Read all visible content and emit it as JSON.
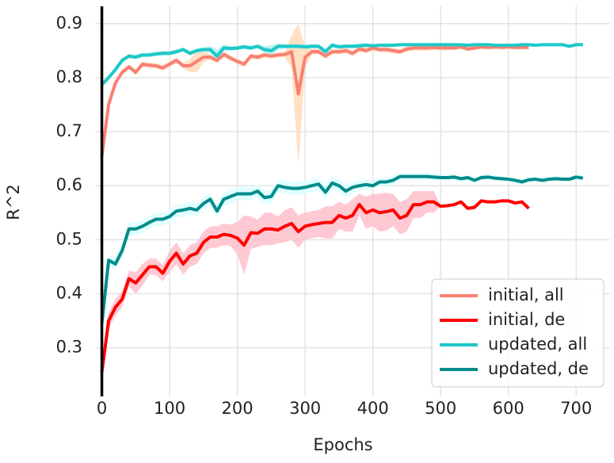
{
  "chart_data": {
    "type": "line",
    "xlabel": "Epochs",
    "ylabel": "R^2",
    "xlim": [
      -10,
      750
    ],
    "ylim": [
      0.21,
      0.932
    ],
    "xticks": [
      0,
      100,
      200,
      300,
      400,
      500,
      600,
      700
    ],
    "yticks": [
      0.3,
      0.4,
      0.5,
      0.6,
      0.7,
      0.8,
      0.9
    ],
    "grid": true,
    "legend": "lower right",
    "x": [
      0,
      10,
      20,
      30,
      40,
      50,
      60,
      70,
      80,
      90,
      100,
      110,
      120,
      130,
      140,
      150,
      160,
      170,
      180,
      190,
      200,
      210,
      220,
      230,
      240,
      250,
      260,
      270,
      280,
      290,
      300,
      310,
      320,
      330,
      340,
      350,
      360,
      370,
      380,
      390,
      400,
      410,
      420,
      430,
      440,
      450,
      460,
      470,
      480,
      490,
      500,
      510,
      520,
      530,
      540,
      550,
      560,
      570,
      580,
      590,
      600,
      610,
      620,
      630,
      640,
      650,
      660,
      670,
      680,
      690,
      700,
      710
    ],
    "series": [
      {
        "name": "initial, all",
        "color": "#fa8072",
        "band_color": "#ffdab9",
        "values": [
          0.655,
          0.75,
          0.79,
          0.81,
          0.82,
          0.81,
          0.825,
          0.823,
          0.822,
          0.818,
          0.825,
          0.832,
          0.822,
          0.822,
          0.83,
          0.838,
          0.838,
          0.832,
          0.843,
          0.836,
          0.83,
          0.825,
          0.84,
          0.838,
          0.842,
          0.84,
          0.842,
          0.843,
          0.848,
          0.77,
          0.838,
          0.848,
          0.848,
          0.84,
          0.848,
          0.848,
          0.85,
          0.845,
          0.853,
          0.85,
          0.855,
          0.852,
          0.852,
          0.85,
          0.848,
          0.853,
          0.855,
          0.855,
          0.855,
          0.856,
          0.855,
          0.855,
          0.855,
          0.857,
          0.853,
          0.855,
          0.857,
          0.856,
          0.857,
          0.856,
          0.857,
          0.856,
          0.856,
          0.856,
          null,
          null,
          null,
          null,
          null,
          null,
          null,
          null
        ],
        "errors": [
          0.005,
          0.005,
          0.005,
          0.005,
          0.005,
          0.005,
          0.005,
          0.005,
          0.005,
          0.005,
          0.005,
          0.005,
          0.005,
          0.012,
          0.02,
          0.01,
          0.005,
          0.005,
          0.005,
          0.005,
          0.005,
          0.005,
          0.005,
          0.005,
          0.005,
          0.005,
          0.005,
          0.005,
          0.03,
          0.13,
          0.02,
          0.005,
          0.005,
          0.005,
          0.005,
          0.005,
          0.005,
          0.005,
          0.005,
          0.005,
          0.005,
          0.005,
          0.005,
          0.005,
          0.005,
          0.005,
          0.005,
          0.005,
          0.005,
          0.005,
          0.004,
          0.004,
          0.004,
          0.004,
          0.004,
          0.004,
          0.004,
          0.004,
          0.004,
          0.004,
          0.004,
          0.004,
          0.004,
          0.004,
          null,
          null,
          null,
          null,
          null,
          null,
          null,
          null
        ]
      },
      {
        "name": "initial, de",
        "color": "#ff0000",
        "band_color": "#ffc0cb",
        "values": [
          0.255,
          0.35,
          0.375,
          0.39,
          0.428,
          0.42,
          0.435,
          0.45,
          0.45,
          0.438,
          0.46,
          0.475,
          0.455,
          0.47,
          0.475,
          0.495,
          0.505,
          0.505,
          0.51,
          0.508,
          0.503,
          0.49,
          0.513,
          0.512,
          0.52,
          0.52,
          0.518,
          0.525,
          0.53,
          0.515,
          0.525,
          0.528,
          0.53,
          0.532,
          0.532,
          0.545,
          0.54,
          0.545,
          0.565,
          0.55,
          0.555,
          0.55,
          0.552,
          0.555,
          0.54,
          0.545,
          0.565,
          0.565,
          0.57,
          0.57,
          0.562,
          0.563,
          0.565,
          0.57,
          0.558,
          0.56,
          0.572,
          0.57,
          0.57,
          0.572,
          0.572,
          0.568,
          0.57,
          0.558,
          null,
          null,
          null,
          null,
          null,
          null,
          null,
          null
        ],
        "errors": [
          0.01,
          0.015,
          0.015,
          0.015,
          0.015,
          0.02,
          0.02,
          0.015,
          0.015,
          0.015,
          0.02,
          0.02,
          0.02,
          0.02,
          0.02,
          0.02,
          0.02,
          0.02,
          0.02,
          0.02,
          0.03,
          0.055,
          0.03,
          0.025,
          0.03,
          0.03,
          0.025,
          0.03,
          0.03,
          0.03,
          0.025,
          0.025,
          0.025,
          0.03,
          0.03,
          0.025,
          0.025,
          0.03,
          0.02,
          0.03,
          0.03,
          0.035,
          0.035,
          0.03,
          0.03,
          0.03,
          0.025,
          0.025,
          0.02,
          0.02,
          0,
          0,
          0,
          0,
          0,
          0,
          0,
          0,
          0,
          0,
          0,
          0,
          0,
          0,
          null,
          null,
          null,
          null,
          null,
          null,
          null,
          null
        ]
      },
      {
        "name": "updated, all",
        "color": "#1ec8c8",
        "band_color": "#b0f0f0",
        "values": [
          0.787,
          0.8,
          0.815,
          0.832,
          0.84,
          0.838,
          0.842,
          0.842,
          0.844,
          0.845,
          0.845,
          0.848,
          0.852,
          0.845,
          0.85,
          0.852,
          0.852,
          0.84,
          0.855,
          0.854,
          0.855,
          0.857,
          0.855,
          0.858,
          0.852,
          0.85,
          0.858,
          0.858,
          0.858,
          0.858,
          0.857,
          0.858,
          0.858,
          0.848,
          0.86,
          0.857,
          0.858,
          0.858,
          0.859,
          0.86,
          0.859,
          0.86,
          0.86,
          0.86,
          0.861,
          0.861,
          0.861,
          0.861,
          0.861,
          0.861,
          0.861,
          0.861,
          0.861,
          0.861,
          0.86,
          0.861,
          0.861,
          0.861,
          0.86,
          0.86,
          0.86,
          0.86,
          0.861,
          0.861,
          0.86,
          0.861,
          0.861,
          0.861,
          0.861,
          0.858,
          0.861,
          0.861
        ],
        "errors": [
          0.004,
          0.004,
          0.004,
          0.004,
          0.004,
          0.004,
          0.004,
          0.004,
          0.004,
          0.004,
          0.004,
          0.004,
          0.004,
          0.004,
          0.004,
          0.004,
          0.006,
          0.012,
          0.006,
          0.004,
          0.004,
          0.004,
          0.004,
          0.004,
          0.006,
          0.01,
          0.006,
          0.004,
          0.004,
          0.004,
          0.004,
          0.004,
          0.004,
          0.006,
          0.004,
          0.004,
          0.004,
          0.004,
          0.004,
          0.004,
          0.003,
          0.003,
          0.003,
          0.003,
          0.003,
          0.003,
          0.003,
          0.003,
          0.003,
          0.003,
          0.003,
          0.003,
          0.003,
          0.003,
          0.003,
          0.003,
          0.003,
          0.003,
          0.003,
          0.003,
          0.003,
          0.003,
          0.003,
          0.003,
          0.003,
          0.003,
          0.003,
          0.003,
          0.003,
          0.003,
          0.003,
          0.003
        ]
      },
      {
        "name": "updated, de",
        "color": "#008b8b",
        "band_color": "#dcffff",
        "values": [
          0.345,
          0.462,
          0.455,
          0.48,
          0.52,
          0.52,
          0.525,
          0.532,
          0.538,
          0.538,
          0.543,
          0.553,
          0.555,
          0.558,
          0.555,
          0.567,
          0.575,
          0.553,
          0.575,
          0.58,
          0.585,
          0.585,
          0.585,
          0.59,
          0.578,
          0.58,
          0.6,
          0.597,
          0.595,
          0.595,
          0.597,
          0.6,
          0.603,
          0.588,
          0.605,
          0.6,
          0.59,
          0.597,
          0.6,
          0.602,
          0.6,
          0.607,
          0.607,
          0.61,
          0.617,
          0.617,
          0.617,
          0.617,
          0.617,
          0.616,
          0.615,
          0.615,
          0.616,
          0.613,
          0.615,
          0.61,
          0.615,
          0.616,
          0.614,
          0.613,
          0.612,
          0.61,
          0.607,
          0.611,
          0.612,
          0.61,
          0.612,
          0.613,
          0.612,
          0.612,
          0.616,
          0.614
        ],
        "errors": [
          0.01,
          0.012,
          0.012,
          0.012,
          0.012,
          0.012,
          0.012,
          0.012,
          0.012,
          0.012,
          0.012,
          0.012,
          0.012,
          0.012,
          0.012,
          0.012,
          0.012,
          0.012,
          0.012,
          0.012,
          0.012,
          0.012,
          0.012,
          0.012,
          0.012,
          0.012,
          0.012,
          0.012,
          0.012,
          0.012,
          0.012,
          0.012,
          0.012,
          0.012,
          0.012,
          0.012,
          0.012,
          0.01,
          0.01,
          0.01,
          0.008,
          0.008,
          0.008,
          0.008,
          0.006,
          0.006,
          0.006,
          0.006,
          0.006,
          0.006,
          0.005,
          0.005,
          0.005,
          0.005,
          0.005,
          0.005,
          0.005,
          0.005,
          0.005,
          0.005,
          0.005,
          0.005,
          0.005,
          0.005,
          0.005,
          0.005,
          0.005,
          0.005,
          0.005,
          0.005,
          0.005,
          0.005
        ]
      }
    ]
  }
}
